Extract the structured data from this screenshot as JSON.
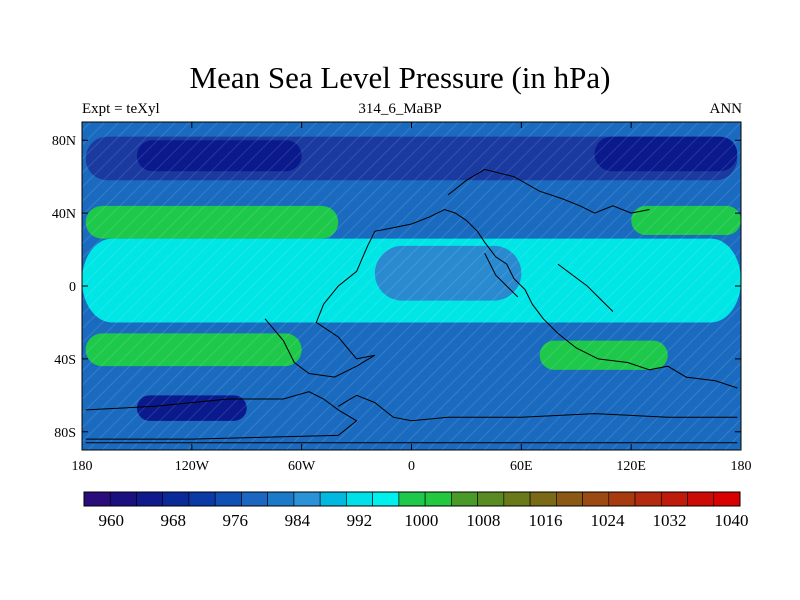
{
  "map": {
    "title": "Mean Sea Level Pressure (in hPa)",
    "left_string": "Expt = teXyl",
    "center_string": "314_6_MaBP",
    "right_string": "ANN",
    "projection": "cylindrical equidistant",
    "extent": {
      "lon": [
        -180,
        180
      ],
      "lat": [
        -90,
        90
      ]
    },
    "lat_ticks": [
      {
        "value": 80,
        "label": "80N"
      },
      {
        "value": 40,
        "label": "40N"
      },
      {
        "value": 0,
        "label": "0"
      },
      {
        "value": -40,
        "label": "40S"
      },
      {
        "value": -80,
        "label": "80S"
      }
    ],
    "lon_ticks": [
      {
        "value": -180,
        "label": "180"
      },
      {
        "value": -120,
        "label": "120W"
      },
      {
        "value": -60,
        "label": "60W"
      },
      {
        "value": 0,
        "label": "0"
      },
      {
        "value": 60,
        "label": "60E"
      },
      {
        "value": 120,
        "label": "120E"
      },
      {
        "value": 180,
        "label": "180"
      }
    ],
    "zones": [
      {
        "name": "northern-subpolar-low",
        "color": "#1a3aa0",
        "lat": [
          58,
          82
        ],
        "lon": [
          -178,
          178
        ]
      },
      {
        "name": "northern-subpolar-low-core",
        "color": "#0a1a8c",
        "lat": [
          63,
          80
        ],
        "lon": [
          -150,
          -60
        ]
      },
      {
        "name": "northern-subpolar-low-core-east",
        "color": "#0a1a8c",
        "lat": [
          63,
          82
        ],
        "lon": [
          100,
          178
        ]
      },
      {
        "name": "northern-subtropical-high",
        "color": "#1ec84a",
        "lat": [
          26,
          44
        ],
        "lon": [
          -178,
          -40
        ]
      },
      {
        "name": "northern-subtropical-high-east",
        "color": "#1ec84a",
        "lat": [
          28,
          44
        ],
        "lon": [
          120,
          180
        ]
      },
      {
        "name": "equatorial-band",
        "color": "#00e5e5",
        "lat": [
          -20,
          26
        ],
        "lon": [
          -180,
          180
        ]
      },
      {
        "name": "equatorial-low-east",
        "color": "#2a8ad0",
        "lat": [
          -8,
          22
        ],
        "lon": [
          -20,
          60
        ]
      },
      {
        "name": "southern-subtropical-high",
        "color": "#1ec84a",
        "lat": [
          -44,
          -26
        ],
        "lon": [
          -178,
          -60
        ]
      },
      {
        "name": "southern-subtropical-high-east",
        "color": "#1ec84a",
        "lat": [
          -46,
          -30
        ],
        "lon": [
          70,
          140
        ]
      },
      {
        "name": "southern-subpolar-low",
        "color": "#1a6bc0",
        "lat": [
          -88,
          -52
        ],
        "lon": [
          -180,
          180
        ]
      },
      {
        "name": "southern-subpolar-low-core",
        "color": "#0a1a8c",
        "lat": [
          -74,
          -60
        ],
        "lon": [
          -150,
          -90
        ]
      }
    ],
    "coastlines": [
      [
        [
          -30,
          -40
        ],
        [
          -40,
          -28
        ],
        [
          -52,
          -20
        ],
        [
          -48,
          -10
        ],
        [
          -40,
          0
        ],
        [
          -30,
          8
        ],
        [
          -24,
          22
        ],
        [
          -20,
          30
        ],
        [
          -10,
          32
        ],
        [
          0,
          34
        ],
        [
          10,
          38
        ],
        [
          18,
          42
        ],
        [
          24,
          40
        ],
        [
          30,
          36
        ],
        [
          36,
          30
        ],
        [
          40,
          24
        ],
        [
          46,
          16
        ],
        [
          52,
          12
        ],
        [
          56,
          4
        ],
        [
          62,
          -2
        ],
        [
          66,
          -10
        ],
        [
          72,
          -18
        ],
        [
          80,
          -26
        ],
        [
          90,
          -34
        ],
        [
          102,
          -40
        ],
        [
          118,
          -42
        ],
        [
          130,
          -46
        ],
        [
          140,
          -44
        ],
        [
          150,
          -50
        ],
        [
          166,
          -52
        ],
        [
          178,
          -56
        ]
      ],
      [
        [
          -80,
          -18
        ],
        [
          -70,
          -30
        ],
        [
          -64,
          -42
        ],
        [
          -56,
          -48
        ],
        [
          -42,
          -50
        ],
        [
          -30,
          -44
        ],
        [
          -20,
          -38
        ],
        [
          -30,
          -40
        ]
      ],
      [
        [
          -178,
          -68
        ],
        [
          -140,
          -66
        ],
        [
          -100,
          -62
        ],
        [
          -70,
          -62
        ],
        [
          -56,
          -58
        ],
        [
          -48,
          -62
        ],
        [
          -40,
          -68
        ],
        [
          -30,
          -74
        ],
        [
          -40,
          -82
        ],
        [
          -120,
          -84
        ],
        [
          -178,
          -84
        ]
      ],
      [
        [
          -40,
          -66
        ],
        [
          -30,
          -60
        ],
        [
          -20,
          -64
        ],
        [
          -10,
          -72
        ],
        [
          0,
          -74
        ],
        [
          20,
          -72
        ],
        [
          60,
          -72
        ],
        [
          100,
          -70
        ],
        [
          140,
          -72
        ],
        [
          178,
          -72
        ]
      ],
      [
        [
          -178,
          -86
        ],
        [
          178,
          -86
        ]
      ],
      [
        [
          20,
          50
        ],
        [
          30,
          58
        ],
        [
          40,
          64
        ],
        [
          56,
          60
        ],
        [
          70,
          52
        ],
        [
          82,
          48
        ],
        [
          92,
          44
        ],
        [
          100,
          40
        ],
        [
          110,
          44
        ],
        [
          120,
          40
        ],
        [
          130,
          42
        ]
      ],
      [
        [
          80,
          12
        ],
        [
          88,
          6
        ],
        [
          96,
          0
        ],
        [
          104,
          -8
        ],
        [
          110,
          -14
        ]
      ],
      [
        [
          40,
          18
        ],
        [
          46,
          6
        ],
        [
          52,
          0
        ],
        [
          58,
          -6
        ]
      ]
    ]
  },
  "colorbar": {
    "colors": [
      "#2a0d7a",
      "#1a1080",
      "#101a8c",
      "#0a2a9a",
      "#0a3aa6",
      "#1050b4",
      "#1a66c0",
      "#1a7ac8",
      "#2a92d6",
      "#00b8e0",
      "#00e0e8",
      "#00f0ee",
      "#1ec84a",
      "#22c840",
      "#4a9a2a",
      "#5a8a22",
      "#6a7a1a",
      "#7a6a18",
      "#8a5a14",
      "#9a4a12",
      "#a83a10",
      "#b42a0e",
      "#c01a0a",
      "#cc0a06",
      "#d80000"
    ],
    "labels": [
      "960",
      "968",
      "976",
      "984",
      "992",
      "1000",
      "1008",
      "1016",
      "1024",
      "1032",
      "1040"
    ]
  }
}
